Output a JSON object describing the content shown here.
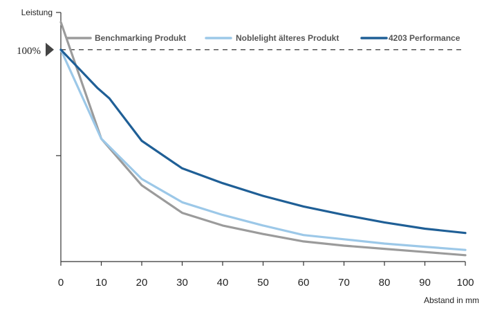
{
  "chart_data": {
    "type": "line",
    "title": "",
    "xlabel": "Abstand in mm",
    "ylabel": "Leistung",
    "xlim": [
      0,
      100
    ],
    "ylim": [
      0,
      113
    ],
    "x_ticks": [
      0,
      10,
      20,
      30,
      40,
      50,
      60,
      70,
      80,
      90,
      100
    ],
    "reference_line": {
      "value": 100,
      "label": "100%",
      "style": "dashed"
    },
    "legend_position": "top",
    "grid": false,
    "series": [
      {
        "name": "Benchmarking Produkt",
        "color": "#9b9b9b",
        "x": [
          0,
          10,
          20,
          30,
          40,
          45,
          50,
          60,
          70,
          80,
          90,
          100
        ],
        "y": [
          113,
          58,
          36,
          23,
          17,
          15,
          13,
          9.5,
          7.5,
          6,
          4.5,
          3
        ]
      },
      {
        "name": "Noblelight älteres Produkt",
        "color": "#9cc8e8",
        "x": [
          0,
          10,
          20,
          30,
          40,
          50,
          60,
          70,
          80,
          90,
          100
        ],
        "y": [
          100,
          58,
          39,
          28,
          22,
          17,
          12.5,
          10.5,
          8.5,
          7,
          5.5
        ]
      },
      {
        "name": "4203 Performance",
        "color": "#1f5f96",
        "x": [
          0,
          9,
          12,
          20,
          30,
          40,
          50,
          60,
          70,
          80,
          90,
          100
        ],
        "y": [
          100,
          82,
          77,
          57,
          44,
          37,
          31,
          26,
          22,
          18.5,
          15.5,
          13.5
        ]
      }
    ]
  }
}
